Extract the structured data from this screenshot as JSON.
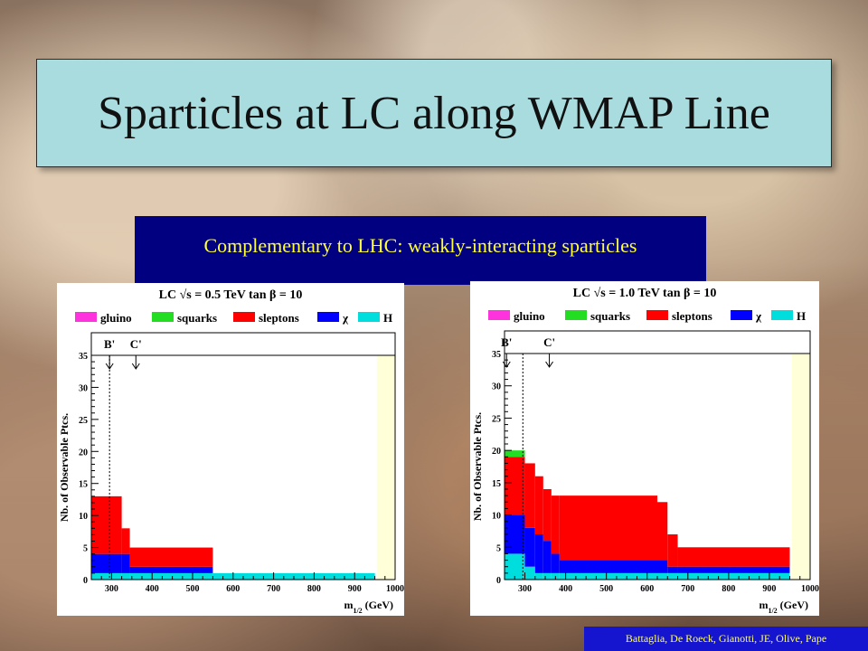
{
  "title": "Sparticles at LC along WMAP Line",
  "subtitle": "Complementary to LHC: weakly-interacting sparticles",
  "credit": "Battaglia, De Roeck, Gianotti, JE, Olive, Pape",
  "colors": {
    "title_bg": "#a8dcdf",
    "subtitle_bg": "#000080",
    "subtitle_text": "#ffff33",
    "credit_bg": "#1515d0",
    "gluino": "#ff33dd",
    "squarks": "#22dd22",
    "sleptons": "#ff0000",
    "chi": "#0000ff",
    "H": "#00dddd",
    "band": "#ffffd8"
  },
  "chart_data": [
    {
      "type": "area",
      "title": "LC √s = 0.5 TeV  tan β = 10",
      "xlabel": "m1/2 (GeV)",
      "ylabel": "Nb. of Observable Ptcs.",
      "xlim": [
        250,
        1000
      ],
      "ylim": [
        0,
        35
      ],
      "xticks": [
        300,
        400,
        500,
        600,
        700,
        800,
        900,
        1000
      ],
      "yticks": [
        0,
        5,
        10,
        15,
        20,
        25,
        30,
        35
      ],
      "legend": [
        "gluino",
        "squarks",
        "sleptons",
        "χ",
        "H"
      ],
      "legend_placement": "top",
      "markers": [
        {
          "label": "B'",
          "x": 295
        },
        {
          "label": "C'",
          "x": 360
        }
      ],
      "dashed_line_x": 295,
      "band": [
        955,
        1000
      ],
      "x_edges": [
        250,
        325,
        345,
        550,
        950
      ],
      "series": [
        {
          "name": "H",
          "values": [
            1,
            1,
            1,
            1
          ]
        },
        {
          "name": "χ",
          "values": [
            3,
            3,
            1,
            0
          ]
        },
        {
          "name": "sleptons",
          "values": [
            9,
            4,
            3,
            0
          ]
        },
        {
          "name": "squarks",
          "values": [
            0,
            0,
            0,
            0
          ]
        },
        {
          "name": "gluino",
          "values": [
            0,
            0,
            0,
            0
          ]
        }
      ]
    },
    {
      "type": "area",
      "title": "LC √s = 1.0 TeV  tan β = 10",
      "xlabel": "m1/2 (GeV)",
      "ylabel": "Nb. of Observable Ptcs.",
      "xlim": [
        250,
        1000
      ],
      "ylim": [
        0,
        35
      ],
      "xticks": [
        300,
        400,
        500,
        600,
        700,
        800,
        900,
        1000
      ],
      "yticks": [
        0,
        5,
        10,
        15,
        20,
        25,
        30,
        35
      ],
      "legend": [
        "gluino",
        "squarks",
        "sleptons",
        "χ",
        "H"
      ],
      "legend_placement": "top",
      "markers": [
        {
          "label": "B'",
          "x": 255
        },
        {
          "label": "C'",
          "x": 360
        }
      ],
      "dashed_line_x": 295,
      "band": [
        955,
        1000
      ],
      "x_edges": [
        250,
        300,
        325,
        345,
        365,
        385,
        625,
        650,
        675,
        950
      ],
      "series": [
        {
          "name": "H",
          "values": [
            4,
            2,
            1,
            1,
            1,
            1,
            1,
            1,
            1
          ]
        },
        {
          "name": "χ",
          "values": [
            6,
            6,
            6,
            5,
            3,
            2,
            2,
            1,
            1
          ]
        },
        {
          "name": "sleptons",
          "values": [
            9,
            10,
            9,
            8,
            9,
            10,
            9,
            5,
            3
          ]
        },
        {
          "name": "squarks",
          "values": [
            1,
            0,
            0,
            0,
            0,
            0,
            0,
            0,
            0
          ]
        },
        {
          "name": "gluino",
          "values": [
            0,
            0,
            0,
            0,
            0,
            0,
            0,
            0,
            0
          ]
        }
      ]
    }
  ]
}
